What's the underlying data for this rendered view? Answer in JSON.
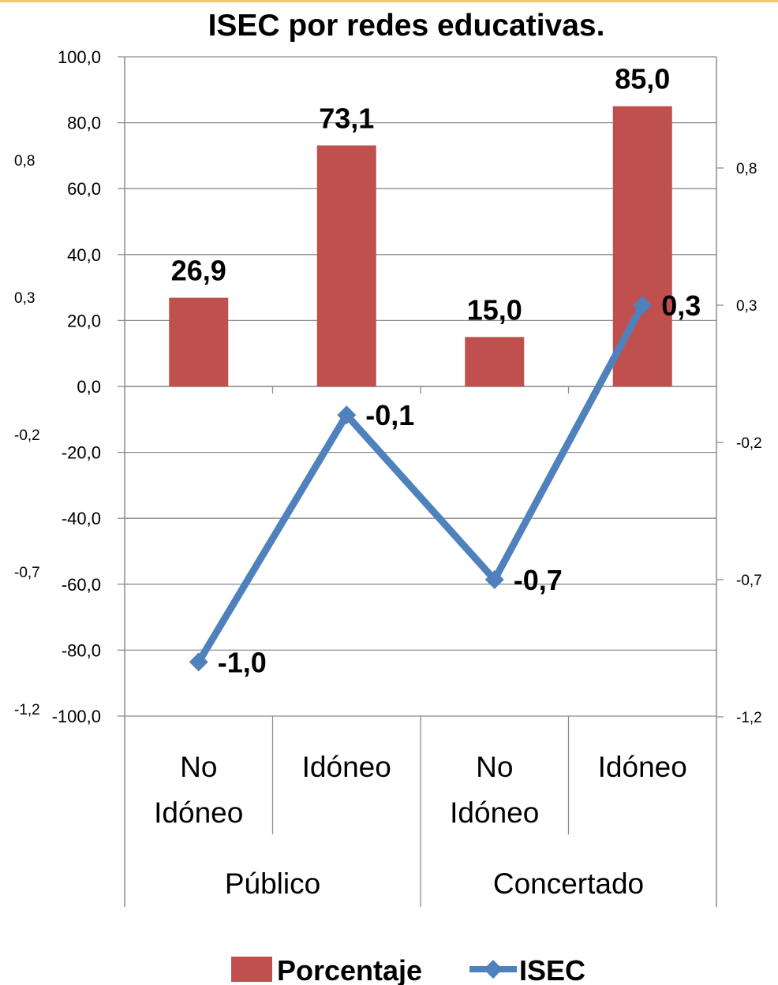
{
  "chart_data": {
    "type": "bar+line",
    "title": "ISEC por redes educativas.",
    "groups": [
      {
        "name": "Público",
        "categories": [
          "No Idóneo",
          "Idóneo"
        ]
      },
      {
        "name": "Concertado",
        "categories": [
          "No Idóneo",
          "Idóneo"
        ]
      }
    ],
    "series": [
      {
        "name": "Porcentaje",
        "type": "bar",
        "axis": "left",
        "color": "#c0504d",
        "values": [
          26.9,
          73.1,
          15.0,
          85.0
        ],
        "labels": [
          "26,9",
          "73,1",
          "15,0",
          "85,0"
        ]
      },
      {
        "name": "ISEC",
        "type": "line",
        "axis": "right",
        "color": "#4f81bd",
        "marker": "diamond",
        "values": [
          -1.0,
          -0.1,
          -0.7,
          0.3
        ],
        "labels": [
          "-1,0",
          "-0,1",
          "-0,7",
          "0,3"
        ]
      }
    ],
    "y_left": {
      "ylim": [
        -100,
        100
      ],
      "ticks": [
        100,
        80,
        60,
        40,
        20,
        0,
        -20,
        -40,
        -60,
        -80,
        -100
      ],
      "tick_labels": [
        "100,0",
        "80,0",
        "60,0",
        "40,0",
        "20,0",
        "0,0",
        "-20,0",
        "-40,0",
        "-60,0",
        "-80,0",
        "-100,0"
      ],
      "secondary_ticks": [
        0.8,
        0.3,
        -0.2,
        -0.7,
        -1.2
      ],
      "secondary_tick_labels": [
        "0,8",
        "0,3",
        "-0,2",
        "-0,7",
        "-1,2"
      ]
    },
    "y_right": {
      "ticks": [
        0.8,
        0.3,
        -0.2,
        -0.7,
        -1.2
      ],
      "tick_labels": [
        "0,8",
        "0,3",
        "-0,2",
        "-0,7",
        "-1,2"
      ]
    },
    "grid": true,
    "legend": {
      "position": "bottom",
      "entries": [
        "Porcentaje",
        "ISEC"
      ]
    }
  }
}
